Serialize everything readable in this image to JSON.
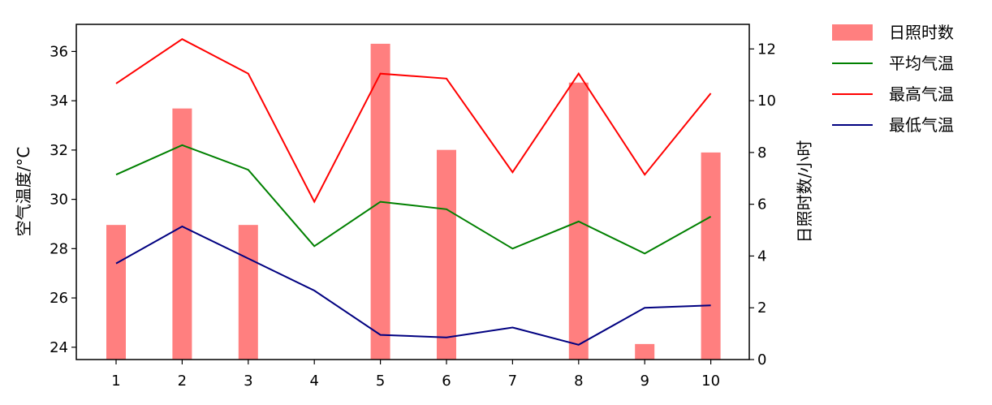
{
  "chart_data": {
    "type": "bar",
    "x": [
      1,
      2,
      3,
      4,
      5,
      6,
      7,
      8,
      9,
      10
    ],
    "y_left": {
      "label": "空气温度/°C",
      "lim": [
        23.5,
        37.1
      ],
      "ticks": [
        24,
        26,
        28,
        30,
        32,
        34,
        36
      ]
    },
    "y_right": {
      "label": "日照时数/小时",
      "lim": [
        0,
        12.95
      ],
      "ticks": [
        0,
        2,
        4,
        6,
        8,
        10,
        12
      ]
    },
    "bars": {
      "name": "日照时数",
      "axis": "right",
      "color": "#ff7f7f",
      "values": [
        5.2,
        9.7,
        5.2,
        0,
        12.2,
        8.1,
        0,
        10.7,
        0.6,
        8.0
      ]
    },
    "series": [
      {
        "name": "平均气温",
        "axis": "left",
        "color": "#008000",
        "values": [
          31.0,
          32.2,
          31.2,
          28.1,
          29.9,
          29.6,
          28.0,
          29.1,
          27.8,
          29.3
        ]
      },
      {
        "name": "最高气温",
        "axis": "left",
        "color": "#ff0000",
        "values": [
          34.7,
          36.5,
          35.1,
          29.9,
          35.1,
          34.9,
          31.1,
          35.1,
          31.0,
          34.3
        ]
      },
      {
        "name": "最低气温",
        "axis": "left",
        "color": "#000080",
        "values": [
          27.4,
          28.9,
          27.6,
          26.3,
          24.5,
          24.4,
          24.8,
          24.1,
          25.6,
          25.7
        ]
      }
    ],
    "legend": {
      "position": "outside-top-right"
    },
    "grid": false
  }
}
